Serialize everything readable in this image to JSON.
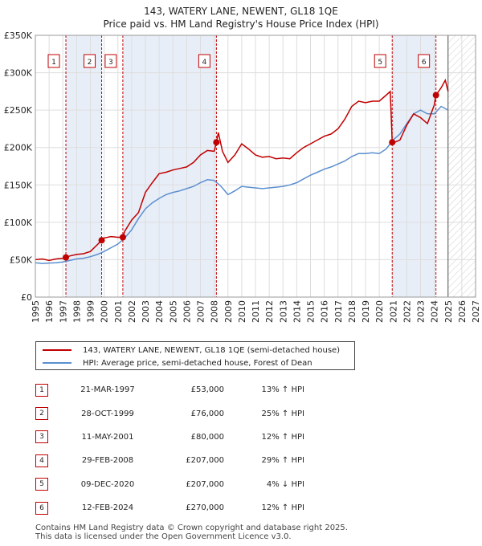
{
  "title_line1": "143, WATERY LANE, NEWENT, GL18 1QE",
  "title_line2": "Price paid vs. HM Land Registry's House Price Index (HPI)",
  "legend": {
    "property": "143, WATERY LANE, NEWENT, GL18 1QE (semi-detached house)",
    "hpi": "HPI: Average price, semi-detached house, Forest of Dean"
  },
  "colors": {
    "property": "#c00000",
    "hpi": "#5b8fcf",
    "shade": "#e8eef8",
    "marker": "#c00000"
  },
  "sales": [
    {
      "num": "1",
      "date": "21-MAR-1997",
      "price": "£53,000",
      "hpi": "13% ↑ HPI"
    },
    {
      "num": "2",
      "date": "28-OCT-1999",
      "price": "£76,000",
      "hpi": "25% ↑ HPI"
    },
    {
      "num": "3",
      "date": "11-MAY-2001",
      "price": "£80,000",
      "hpi": "12% ↑ HPI"
    },
    {
      "num": "4",
      "date": "29-FEB-2008",
      "price": "£207,000",
      "hpi": "29% ↑ HPI"
    },
    {
      "num": "5",
      "date": "09-DEC-2020",
      "price": "£207,000",
      "hpi": "4% ↓ HPI"
    },
    {
      "num": "6",
      "date": "12-FEB-2024",
      "price": "£270,000",
      "hpi": "12% ↑ HPI"
    }
  ],
  "footer_line1": "Contains HM Land Registry data © Crown copyright and database right 2025.",
  "footer_line2": "This data is licensed under the Open Government Licence v3.0.",
  "chart_data": {
    "type": "line",
    "xlim": [
      1995,
      2027
    ],
    "ylim": [
      0,
      350000
    ],
    "y_ticks": [
      0,
      50000,
      100000,
      150000,
      200000,
      250000,
      300000,
      350000
    ],
    "y_tick_labels": [
      "£0",
      "£50K",
      "£100K",
      "£150K",
      "£200K",
      "£250K",
      "£300K",
      "£350K"
    ],
    "x_ticks": [
      1995,
      1996,
      1997,
      1998,
      1999,
      2000,
      2001,
      2002,
      2003,
      2004,
      2005,
      2006,
      2007,
      2008,
      2009,
      2010,
      2011,
      2012,
      2013,
      2014,
      2015,
      2016,
      2017,
      2018,
      2019,
      2020,
      2021,
      2022,
      2023,
      2024,
      2025,
      2026,
      2027
    ],
    "grid": true,
    "forecast_from": 2025.0,
    "sale_markers": [
      {
        "label": "1",
        "x": 1997.22,
        "y": 53000
      },
      {
        "label": "2",
        "x": 1999.82,
        "y": 76000
      },
      {
        "label": "3",
        "x": 2001.36,
        "y": 80000
      },
      {
        "label": "4",
        "x": 2008.16,
        "y": 207000
      },
      {
        "label": "5",
        "x": 2020.94,
        "y": 207000
      },
      {
        "label": "6",
        "x": 2024.12,
        "y": 270000
      }
    ],
    "series": [
      {
        "name": "143, WATERY LANE, NEWENT, GL18 1QE (semi-detached house)",
        "x": [
          1995,
          1995.5,
          1996,
          1996.5,
          1997,
          1997.22,
          1997.5,
          1998,
          1998.5,
          1999,
          1999.5,
          1999.82,
          2000,
          2000.5,
          2001,
          2001.36,
          2001.5,
          2002,
          2002.5,
          2003,
          2003.5,
          2004,
          2004.5,
          2005,
          2005.5,
          2006,
          2006.5,
          2007,
          2007.5,
          2008,
          2008.16,
          2008.3,
          2008.6,
          2009,
          2009.5,
          2010,
          2010.5,
          2011,
          2011.5,
          2012,
          2012.5,
          2013,
          2013.5,
          2014,
          2014.5,
          2015,
          2015.5,
          2016,
          2016.5,
          2017,
          2017.5,
          2018,
          2018.5,
          2019,
          2019.5,
          2020,
          2020.5,
          2020.8,
          2020.94,
          2021,
          2021.5,
          2022,
          2022.5,
          2023,
          2023.5,
          2024,
          2024.12,
          2024.5,
          2024.8,
          2025
        ],
        "y": [
          50000,
          51000,
          49000,
          51000,
          52000,
          53000,
          55000,
          57000,
          58000,
          61000,
          70000,
          76000,
          79000,
          81000,
          80000,
          80000,
          88000,
          103000,
          113000,
          140000,
          153000,
          165000,
          167000,
          170000,
          172000,
          174000,
          180000,
          190000,
          196000,
          195000,
          207000,
          220000,
          195000,
          180000,
          190000,
          205000,
          198000,
          190000,
          187000,
          188000,
          185000,
          186000,
          185000,
          193000,
          200000,
          205000,
          210000,
          215000,
          218000,
          225000,
          238000,
          255000,
          262000,
          260000,
          262000,
          262000,
          270000,
          275000,
          207000,
          206000,
          210000,
          230000,
          245000,
          240000,
          232000,
          257000,
          270000,
          280000,
          290000,
          275000
        ]
      },
      {
        "name": "HPI: Average price, semi-detached house, Forest of Dean",
        "x": [
          1995,
          1995.5,
          1996,
          1996.5,
          1997,
          1997.5,
          1998,
          1998.5,
          1999,
          1999.5,
          2000,
          2000.5,
          2001,
          2001.5,
          2002,
          2002.5,
          2003,
          2003.5,
          2004,
          2004.5,
          2005,
          2005.5,
          2006,
          2006.5,
          2007,
          2007.5,
          2008,
          2008.5,
          2009,
          2009.5,
          2010,
          2010.5,
          2011,
          2011.5,
          2012,
          2012.5,
          2013,
          2013.5,
          2014,
          2014.5,
          2015,
          2015.5,
          2016,
          2016.5,
          2017,
          2017.5,
          2018,
          2018.5,
          2019,
          2019.5,
          2020,
          2020.5,
          2021,
          2021.5,
          2022,
          2022.5,
          2023,
          2023.5,
          2024,
          2024.5,
          2025
        ],
        "y": [
          46000,
          45000,
          45500,
          46000,
          47000,
          49000,
          51000,
          52000,
          54000,
          57000,
          61000,
          66000,
          71000,
          79000,
          90000,
          105000,
          118000,
          126000,
          132000,
          137000,
          140000,
          142000,
          145000,
          148000,
          153000,
          157000,
          156000,
          148000,
          137000,
          142000,
          148000,
          147000,
          146000,
          145000,
          146000,
          147000,
          148000,
          150000,
          153000,
          158000,
          163000,
          167000,
          171000,
          174000,
          178000,
          182000,
          188000,
          192000,
          192000,
          193000,
          192000,
          198000,
          210000,
          218000,
          232000,
          245000,
          250000,
          245000,
          245000,
          255000,
          250000
        ]
      }
    ]
  }
}
